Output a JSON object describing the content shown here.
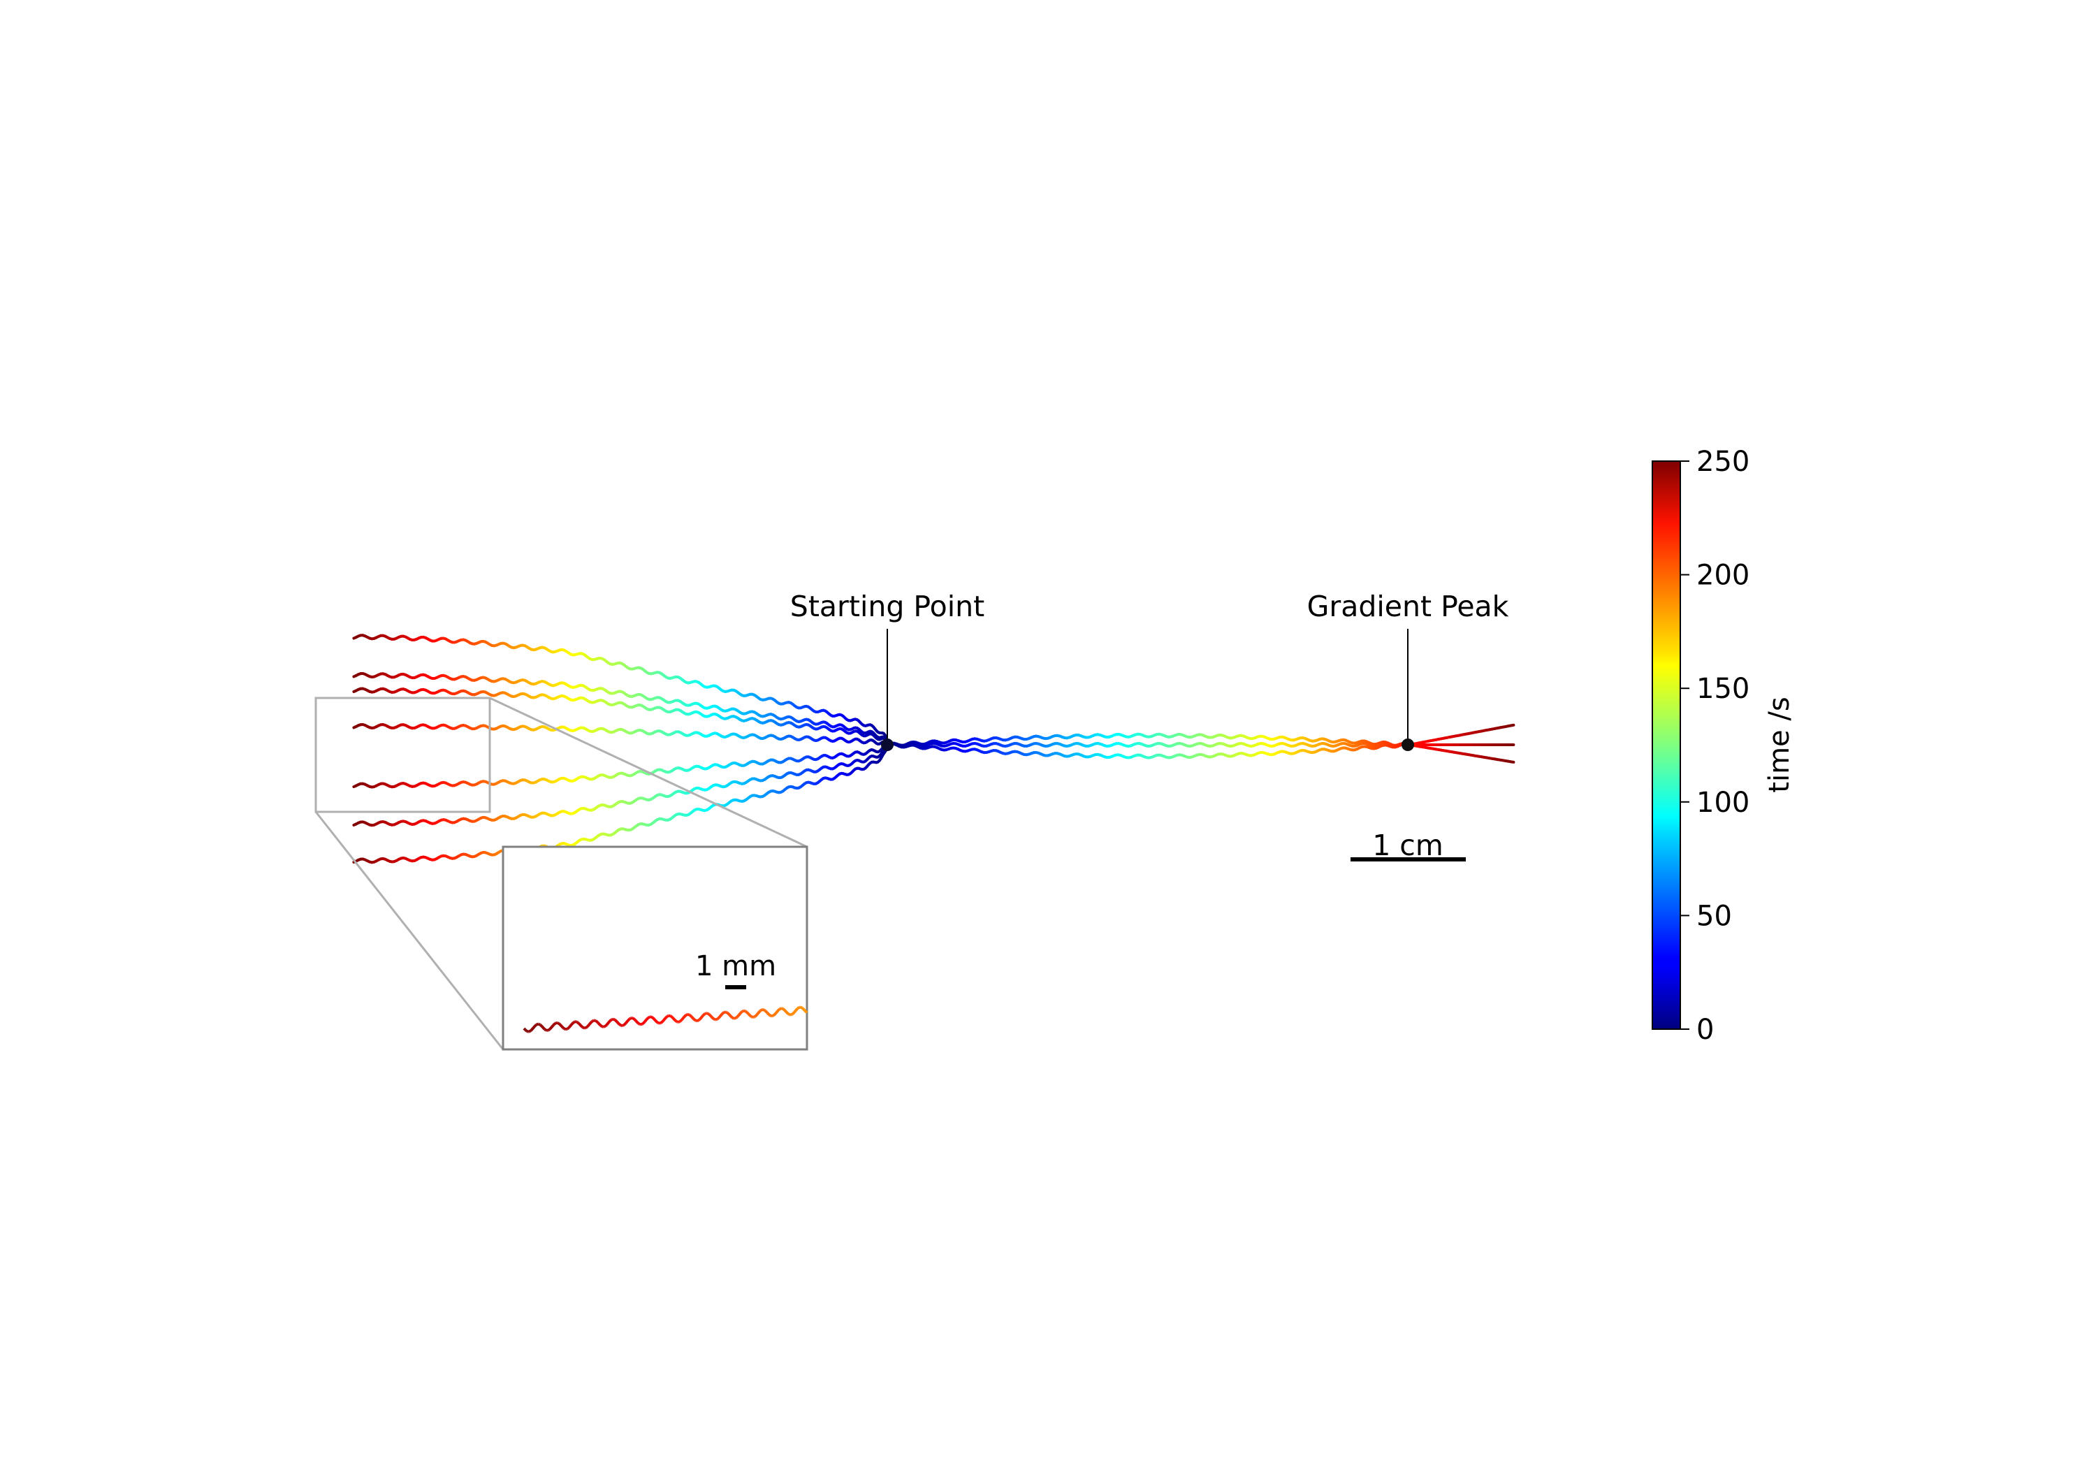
{
  "chart_data": {
    "type": "line",
    "title": "",
    "colormap": "jet",
    "annotations": {
      "start": {
        "label": "Starting Point",
        "x": 0,
        "y": 0
      },
      "peak": {
        "label": "Gradient Peak",
        "x": 4.5,
        "y": 0
      }
    },
    "scale_bar": {
      "label": "1 cm",
      "length": 1
    },
    "inset": {
      "scale_bar_label": "1 mm"
    },
    "colorbar": {
      "label": "time /s",
      "ticks": [
        "0",
        "50",
        "100",
        "150",
        "200",
        "250"
      ],
      "vmin": 0,
      "vmax": 250
    },
    "trajectories": {
      "leftward_end_y": [
        -1.0,
        -0.68,
        -0.35,
        0.16,
        0.47,
        0.6,
        0.93
      ],
      "leftward_end_x": -4.6,
      "toward_peak_end_y": [
        -0.15,
        0.0,
        0.17
      ],
      "toward_peak_end_x": 5.4,
      "duration_s": 250
    }
  }
}
